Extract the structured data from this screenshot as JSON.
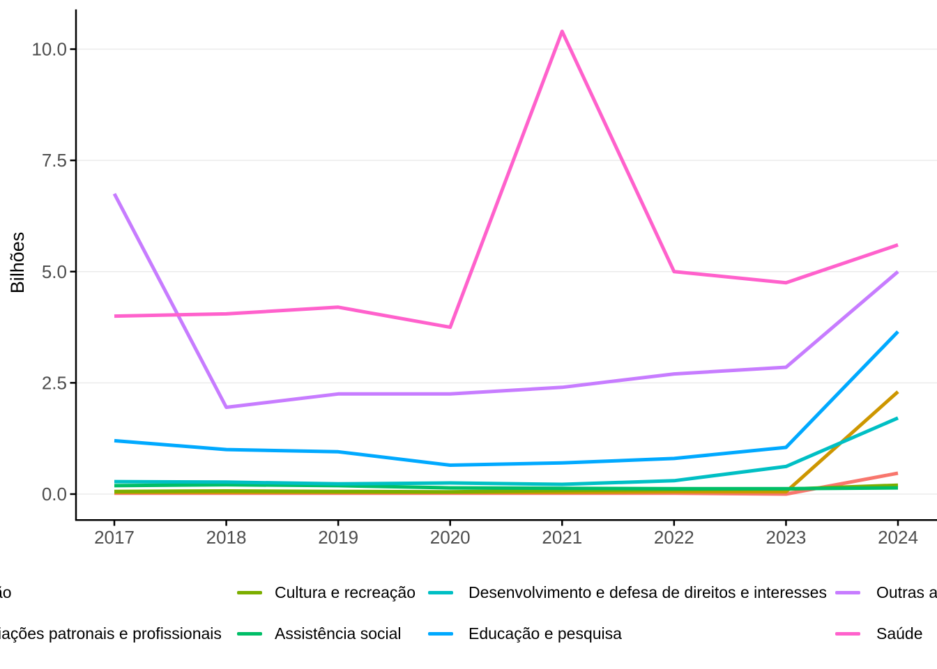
{
  "chart_data": {
    "type": "line",
    "title": "",
    "ylabel": "Bilhões",
    "x": [
      2017,
      2018,
      2019,
      2020,
      2021,
      2022,
      2023,
      2024
    ],
    "x_tick_labels": [
      "2017",
      "2018",
      "2019",
      "2020",
      "2021",
      "2022",
      "2023",
      "2024"
    ],
    "y_ticks": [
      {
        "value": 0,
        "label": "0.0"
      },
      {
        "value": 2.5,
        "label": "2.5"
      },
      {
        "value": 5,
        "label": "5.0"
      },
      {
        "value": 7.5,
        "label": "7.5"
      },
      {
        "value": 10,
        "label": "10.0"
      }
    ],
    "ylim": [
      0,
      10.9
    ],
    "grid": "horizontal major gridlines only",
    "legend_position": "bottom",
    "axis_color": "#000000",
    "tick_label_color": "#4D4D4D",
    "gridline_color": "#EBEBEB",
    "series": [
      {
        "label": "ão",
        "label_truncated_left": true,
        "color": "#F8766D",
        "values": [
          0.02,
          0.02,
          0.02,
          0.02,
          0.02,
          0.02,
          0.0,
          0.47
        ]
      },
      {
        "label": "iações patronais e profissionais",
        "label_truncated_left": true,
        "color": "#CD9600",
        "values": [
          0.04,
          0.04,
          0.04,
          0.04,
          0.04,
          0.05,
          0.05,
          2.3
        ]
      },
      {
        "label": "Cultura e recreação",
        "color": "#7CAE00",
        "values": [
          0.06,
          0.07,
          0.06,
          0.05,
          0.08,
          0.1,
          0.11,
          0.2
        ]
      },
      {
        "label": "Assistência social",
        "color": "#00BE67",
        "values": [
          0.19,
          0.21,
          0.19,
          0.14,
          0.13,
          0.12,
          0.12,
          0.14
        ]
      },
      {
        "label": "Desenvolvimento e defesa de direitos e interesses",
        "color": "#00BFC4",
        "values": [
          0.28,
          0.27,
          0.23,
          0.25,
          0.22,
          0.3,
          0.62,
          1.71
        ]
      },
      {
        "label": "Educação e pesquisa",
        "color": "#00A9FF",
        "values": [
          1.2,
          1.0,
          0.95,
          0.65,
          0.7,
          0.8,
          1.05,
          3.65
        ]
      },
      {
        "label": "Outras a",
        "label_truncated_right": true,
        "color": "#C77CFF",
        "values": [
          6.75,
          1.95,
          2.25,
          2.25,
          2.4,
          2.7,
          2.85,
          5.0
        ]
      },
      {
        "label": "Saúde",
        "color": "#FF61CC",
        "values": [
          4.0,
          4.05,
          4.2,
          3.75,
          10.4,
          5.0,
          4.75,
          5.6
        ]
      }
    ]
  },
  "legend": {
    "layout": "2 rows x 4 columns, filled column-wise, first column clipped at left edge, last column clipped at right edge",
    "rows": [
      {
        "items": [
          {
            "series": 0,
            "key_visible": false
          },
          {
            "series": 2,
            "key_visible": true
          },
          {
            "series": 4,
            "key_visible": true
          },
          {
            "series": 6,
            "key_visible": true
          }
        ]
      },
      {
        "items": [
          {
            "series": 1,
            "key_visible": false
          },
          {
            "series": 3,
            "key_visible": true
          },
          {
            "series": 5,
            "key_visible": true
          },
          {
            "series": 7,
            "key_visible": true
          }
        ]
      }
    ]
  }
}
